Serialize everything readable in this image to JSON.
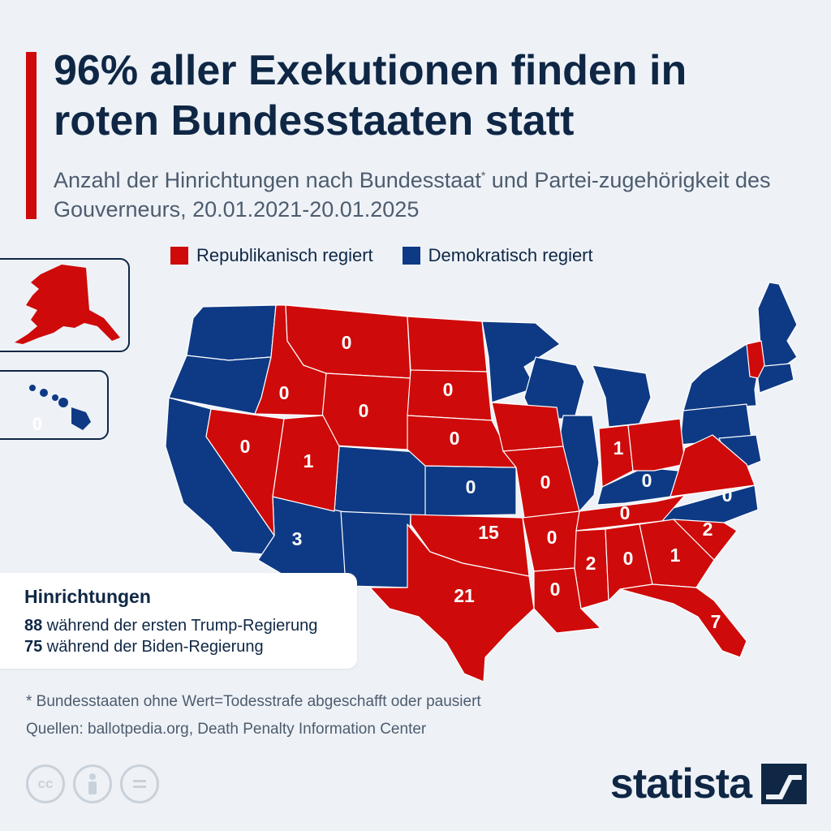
{
  "title": "96% aller Exekutionen finden in roten Bundesstaaten statt",
  "subtitle_part1": "Anzahl der Hinrichtungen nach Bundesstaat",
  "subtitle_star": "*",
  "subtitle_part2": " und Partei-zugehörigkeit des Gouverneurs, 20.01.2021-20.01.2025",
  "legend": {
    "republican": "Republikanisch regiert",
    "democratic": "Demokratisch regiert"
  },
  "colors": {
    "republican": "#cf0a0a",
    "democratic": "#0e3a85",
    "accent": "#cf0a0a"
  },
  "states": {
    "montana": "0",
    "idaho": "0",
    "wyoming": "0",
    "north_dakota": "0",
    "south_dakota": "0",
    "nebraska": "0",
    "nevada": "0",
    "utah": "1",
    "kansas": "0",
    "missouri": "0",
    "indiana": "1",
    "kentucky": "0",
    "north_carolina": "0",
    "tennessee": "0",
    "arizona": "3",
    "oklahoma": "15",
    "arkansas": "0",
    "south_carolina": "2",
    "mississippi": "2",
    "alabama": "0",
    "georgia": "1",
    "texas": "21",
    "louisiana": "0",
    "florida": "7",
    "hawaii": "0"
  },
  "info": {
    "title": "Hinrichtungen",
    "trump_count": "88",
    "trump_text": " während der ersten Trump-Regierung",
    "biden_count": "75",
    "biden_text": " während der Biden-Regierung"
  },
  "footnote": "* Bundesstaaten ohne Wert=Todesstrafe abgeschafft oder pausiert",
  "sources": "Quellen: ballotpedia.org, Death Penalty Information Center",
  "license_icons": [
    "cc-icon",
    "person-icon",
    "equals-icon"
  ],
  "brand": "statista"
}
